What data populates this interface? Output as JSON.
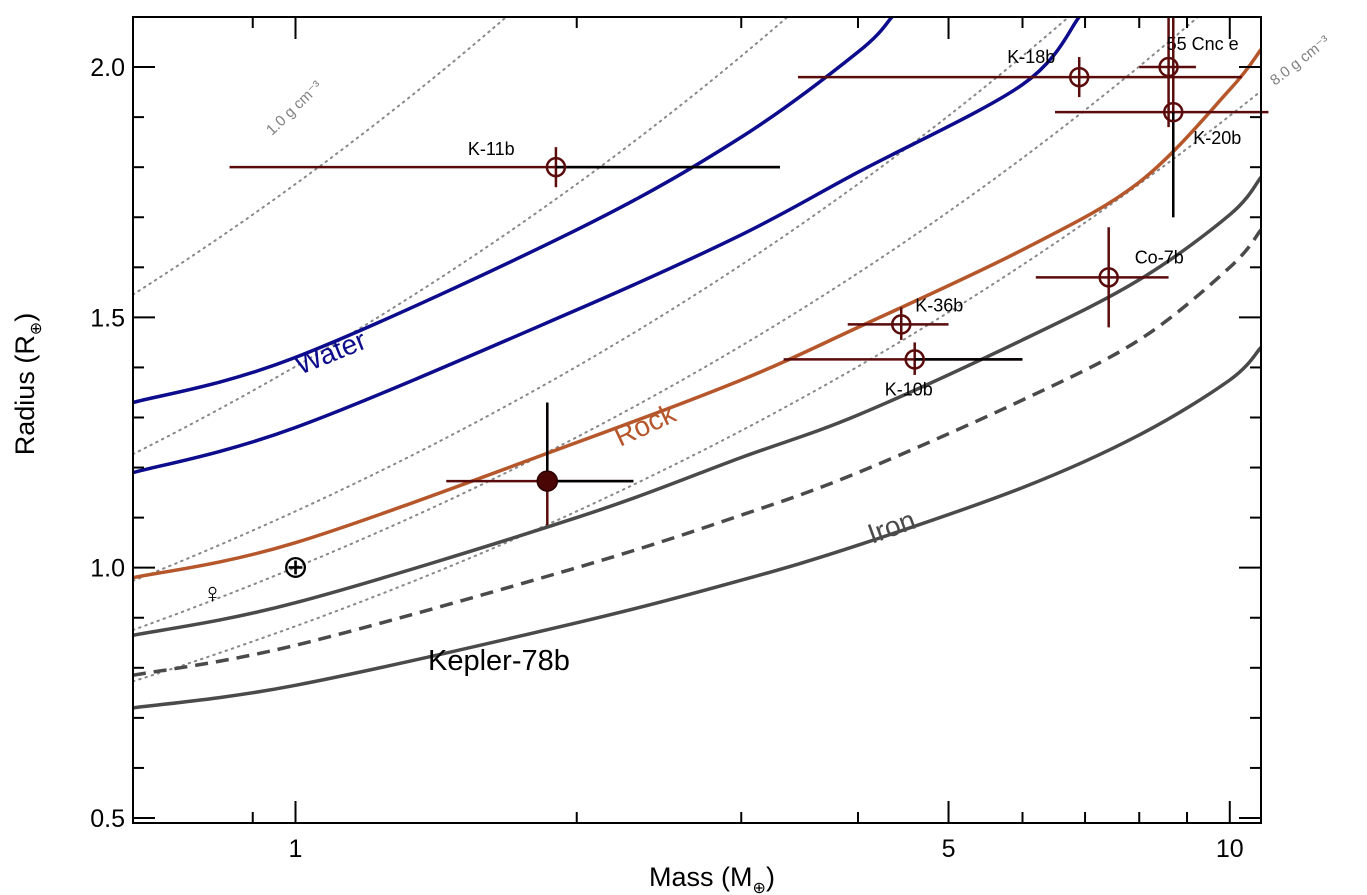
{
  "chart_data": {
    "type": "scatter",
    "xlabel": "Mass (M",
    "xlabel_symbol": "⊕",
    "ylabel": "Radius (R",
    "ylabel_symbol": "⊕",
    "x_scale": "log",
    "xlim": [
      0.67,
      10.8
    ],
    "ylim": [
      0.49,
      2.1
    ],
    "x_major_ticks": [
      1,
      5,
      10
    ],
    "x_tick_labels": [
      "1",
      "5",
      "10"
    ],
    "x_minor_ticks": [
      0.9,
      2,
      3,
      4,
      6,
      7,
      8,
      9
    ],
    "y_major_ticks": [
      0.5,
      1.0,
      1.5,
      2.0
    ],
    "y_tick_labels": [
      "0.5",
      "1.0",
      "1.5",
      "2.0"
    ],
    "y_minor_ticks": [
      0.6,
      0.7,
      0.8,
      0.9,
      1.1,
      1.2,
      1.3,
      1.4,
      1.6,
      1.7,
      1.8,
      1.9
    ],
    "colors": {
      "water": "#0c0c8c",
      "rock": "#b5562b",
      "iron": "#4a4a4a",
      "density": "#888888",
      "planet": "#5a0b0b",
      "kepler78_fill": "#4a0505"
    },
    "composition_curves": [
      {
        "id": "water-upper",
        "label": "",
        "color": "#0c0c8c",
        "dashed": false,
        "points": [
          [
            0.67,
            1.33
          ],
          [
            1.0,
            1.42
          ],
          [
            2.0,
            1.675
          ],
          [
            3.0,
            1.86
          ],
          [
            4.0,
            2.03
          ],
          [
            4.35,
            2.1
          ]
        ]
      },
      {
        "id": "water-lower",
        "label": "Water",
        "color": "#0c0c8c",
        "dashed": false,
        "points": [
          [
            0.67,
            1.19
          ],
          [
            1.0,
            1.28
          ],
          [
            2.0,
            1.515
          ],
          [
            3.0,
            1.665
          ],
          [
            4.0,
            1.79
          ],
          [
            6.0,
            1.965
          ],
          [
            6.9,
            2.1
          ]
        ]
      },
      {
        "id": "rock",
        "label": "Rock",
        "color": "#b5562b",
        "dashed": false,
        "points": [
          [
            0.67,
            0.98
          ],
          [
            1.0,
            1.05
          ],
          [
            2.0,
            1.25
          ],
          [
            3.0,
            1.375
          ],
          [
            4.0,
            1.48
          ],
          [
            6.0,
            1.635
          ],
          [
            8.0,
            1.77
          ],
          [
            10.0,
            1.955
          ],
          [
            10.8,
            2.035
          ]
        ]
      },
      {
        "id": "mixed-solid",
        "label": "",
        "color": "#4a4a4a",
        "dashed": false,
        "points": [
          [
            0.67,
            0.865
          ],
          [
            1.0,
            0.93
          ],
          [
            2.0,
            1.1
          ],
          [
            3.0,
            1.22
          ],
          [
            4.0,
            1.305
          ],
          [
            6.0,
            1.455
          ],
          [
            8.0,
            1.575
          ],
          [
            10.0,
            1.705
          ],
          [
            10.8,
            1.78
          ]
        ]
      },
      {
        "id": "mixed-dashed",
        "label": "",
        "color": "#4a4a4a",
        "dashed": true,
        "points": [
          [
            0.67,
            0.785
          ],
          [
            1.0,
            0.845
          ],
          [
            2.0,
            1.0
          ],
          [
            3.0,
            1.105
          ],
          [
            4.0,
            1.19
          ],
          [
            6.0,
            1.335
          ],
          [
            8.0,
            1.455
          ],
          [
            10.0,
            1.6
          ],
          [
            10.8,
            1.675
          ]
        ]
      },
      {
        "id": "iron",
        "label": "Iron",
        "color": "#4a4a4a",
        "dashed": false,
        "points": [
          [
            0.67,
            0.72
          ],
          [
            1.0,
            0.765
          ],
          [
            2.0,
            0.89
          ],
          [
            3.0,
            0.975
          ],
          [
            4.0,
            1.045
          ],
          [
            6.0,
            1.16
          ],
          [
            8.0,
            1.265
          ],
          [
            10.0,
            1.375
          ],
          [
            10.8,
            1.44
          ]
        ]
      }
    ],
    "density_curves": [
      {
        "rho": 1.0,
        "label": "1.0 g cm⁻³"
      },
      {
        "rho": 2.0,
        "label": ""
      },
      {
        "rho": 4.0,
        "label": ""
      },
      {
        "rho": 5.5,
        "label": ""
      },
      {
        "rho": 8.0,
        "label": "8.0 g cm⁻³"
      }
    ],
    "planets": [
      {
        "name": "K-11b",
        "mass": 1.9,
        "mass_lo": 0.85,
        "mass_hi": 3.3,
        "mass_hi_tail": 3.3,
        "radius": 1.8,
        "r_lo": 1.76,
        "r_hi": 1.84,
        "filled": false
      },
      {
        "name": "K-18b",
        "mass": 6.9,
        "mass_lo": 3.45,
        "mass_hi": 10.3,
        "radius": 1.98,
        "r_lo": 1.94,
        "r_hi": 2.02,
        "filled": false
      },
      {
        "name": "55 Cnc e",
        "mass": 8.6,
        "mass_lo": 8.0,
        "mass_hi": 9.2,
        "radius": 2.0,
        "r_lo": 1.88,
        "r_hi": 2.1,
        "filled": false
      },
      {
        "name": "K-20b",
        "mass": 8.7,
        "mass_lo": 6.5,
        "mass_hi": 11.0,
        "radius": 1.91,
        "r_lo": 1.7,
        "r_hi": 2.1,
        "filled": false
      },
      {
        "name": "Co-7b",
        "mass": 7.42,
        "mass_lo": 6.2,
        "mass_hi": 8.6,
        "radius": 1.58,
        "r_lo": 1.48,
        "r_hi": 1.68,
        "filled": false
      },
      {
        "name": "K-36b",
        "mass": 4.45,
        "mass_lo": 3.9,
        "mass_hi": 5.0,
        "radius": 1.486,
        "r_lo": 1.455,
        "r_hi": 1.52,
        "filled": false
      },
      {
        "name": "K-10b",
        "mass": 4.6,
        "mass_lo": 3.33,
        "mass_hi": 6.0,
        "radius": 1.416,
        "r_lo": 1.385,
        "r_hi": 1.45,
        "filled": false
      },
      {
        "name": "Kepler-78b",
        "mass": 1.86,
        "mass_lo": 1.45,
        "mass_hi": 2.3,
        "radius": 1.173,
        "r_lo": 1.085,
        "r_hi": 1.33,
        "filled": true
      }
    ],
    "solar_system": [
      {
        "name": "Earth",
        "symbol": "⊕",
        "mass": 1.0,
        "radius": 1.0
      },
      {
        "name": "Venus",
        "symbol": "♀",
        "mass": 0.815,
        "radius": 0.95
      }
    ],
    "labels": {
      "water": "Water",
      "rock": "Rock",
      "iron": "Iron",
      "kepler78": "Kepler-78b",
      "density_low": "1.0 g cm⁻³",
      "density_high": "8.0 g cm⁻³"
    }
  }
}
